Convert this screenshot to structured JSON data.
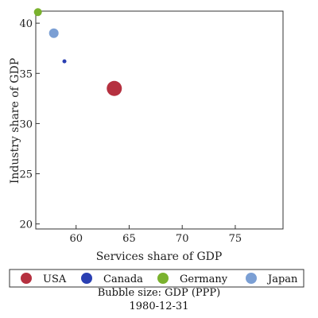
{
  "chart_data": {
    "type": "scatter",
    "xlabel": "Services share of GDP",
    "ylabel": "Industry share of GDP",
    "xlim": [
      56.2,
      79.5
    ],
    "ylim": [
      19.5,
      41.2
    ],
    "xticks": [
      60,
      65,
      70,
      75
    ],
    "yticks": [
      20,
      25,
      30,
      35,
      40
    ],
    "grid": false,
    "legend_position": "bottom",
    "series": [
      {
        "name": "USA",
        "color": "#b5303f",
        "x": 63.6,
        "y": 33.5,
        "size": 9.5
      },
      {
        "name": "Canada",
        "color": "#2a3fb2",
        "x": 58.9,
        "y": 36.2,
        "size": 2.5
      },
      {
        "name": "Germany",
        "color": "#7ab22e",
        "x": 56.4,
        "y": 41.1,
        "size": 5
      },
      {
        "name": "Japan",
        "color": "#7b9fd4",
        "x": 57.9,
        "y": 39.0,
        "size": 6
      }
    ],
    "size_note": "Bubble size: GDP (PPP)",
    "date": "1980-12-31"
  }
}
